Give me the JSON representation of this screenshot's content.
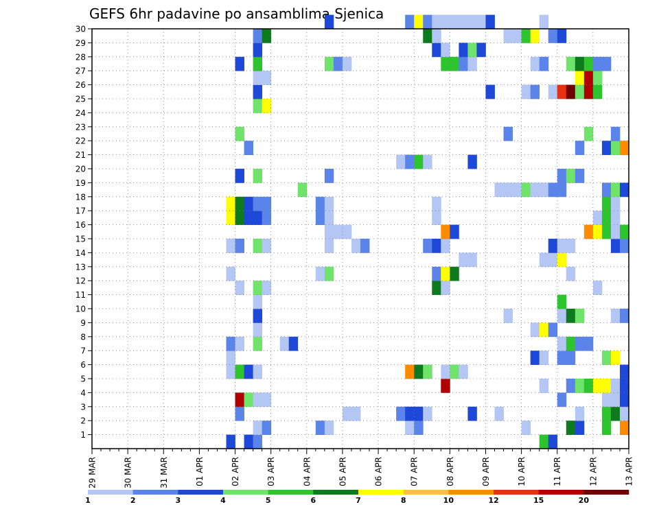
{
  "chart_data": {
    "type": "heatmap",
    "title": "GEFS 6hr padavine po ansamblima Sjenica",
    "xlabel": "",
    "ylabel": "",
    "x_tick_labels": [
      "29 MAR",
      "30 MAR",
      "31 MAR",
      "01 APR",
      "02 APR",
      "03 APR",
      "04 APR",
      "05 APR",
      "06 APR",
      "07 APR",
      "08 APR",
      "09 APR",
      "10 APR",
      "11 APR",
      "12 APR",
      "13 APR"
    ],
    "x_range_steps_6h": [
      0,
      60
    ],
    "y_tick_labels": [
      "1",
      "2",
      "3",
      "4",
      "5",
      "6",
      "7",
      "8",
      "9",
      "10",
      "11",
      "12",
      "13",
      "14",
      "15",
      "16",
      "17",
      "18",
      "19",
      "20",
      "21",
      "22",
      "23",
      "24",
      "25",
      "26",
      "27",
      "28",
      "29",
      "30"
    ],
    "y_range": [
      0,
      30
    ],
    "grid": "dotted",
    "colorbar": {
      "placement": "bottom",
      "labels": [
        "1",
        "2",
        "3",
        "4",
        "5",
        "6",
        "7",
        "8",
        "10",
        "12",
        "15",
        "20"
      ],
      "bin_edges": [
        1,
        2,
        3,
        4,
        5,
        6,
        7,
        8,
        10,
        12,
        15,
        20,
        30
      ],
      "colors": [
        "#b4c6f3",
        "#5b84ea",
        "#1d48d8",
        "#6fe36a",
        "#2ec42e",
        "#0e7a1e",
        "#ffff00",
        "#ffc040",
        "#ff8c00",
        "#e83010",
        "#b00000",
        "#700000"
      ]
    },
    "cells": [
      {
        "m": 0,
        "s": 15,
        "v": 3
      },
      {
        "m": 0,
        "s": 17,
        "v": 3
      },
      {
        "m": 0,
        "s": 18,
        "v": 2
      },
      {
        "m": 0,
        "s": 50,
        "v": 5
      },
      {
        "m": 0,
        "s": 51,
        "v": 3
      },
      {
        "m": 1,
        "s": 18,
        "v": 1
      },
      {
        "m": 1,
        "s": 19,
        "v": 2
      },
      {
        "m": 1,
        "s": 25,
        "v": 2
      },
      {
        "m": 1,
        "s": 26,
        "v": 1
      },
      {
        "m": 1,
        "s": 35,
        "v": 1
      },
      {
        "m": 1,
        "s": 36,
        "v": 2
      },
      {
        "m": 1,
        "s": 48,
        "v": 1
      },
      {
        "m": 1,
        "s": 53,
        "v": 6
      },
      {
        "m": 1,
        "s": 54,
        "v": 3
      },
      {
        "m": 1,
        "s": 57,
        "v": 5
      },
      {
        "m": 1,
        "s": 59,
        "v": 10
      },
      {
        "m": 2,
        "s": 16,
        "v": 2
      },
      {
        "m": 2,
        "s": 28,
        "v": 1
      },
      {
        "m": 2,
        "s": 29,
        "v": 1
      },
      {
        "m": 2,
        "s": 34,
        "v": 2
      },
      {
        "m": 2,
        "s": 35,
        "v": 3
      },
      {
        "m": 2,
        "s": 36,
        "v": 3
      },
      {
        "m": 2,
        "s": 37,
        "v": 1
      },
      {
        "m": 2,
        "s": 42,
        "v": 3
      },
      {
        "m": 2,
        "s": 45,
        "v": 1
      },
      {
        "m": 2,
        "s": 54,
        "v": 1
      },
      {
        "m": 2,
        "s": 57,
        "v": 5
      },
      {
        "m": 2,
        "s": 58,
        "v": 6
      },
      {
        "m": 2,
        "s": 59,
        "v": 1
      },
      {
        "m": 3,
        "s": 16,
        "v": 15
      },
      {
        "m": 3,
        "s": 17,
        "v": 4
      },
      {
        "m": 3,
        "s": 18,
        "v": 1
      },
      {
        "m": 3,
        "s": 19,
        "v": 1
      },
      {
        "m": 3,
        "s": 52,
        "v": 2
      },
      {
        "m": 3,
        "s": 57,
        "v": 1
      },
      {
        "m": 3,
        "s": 58,
        "v": 1
      },
      {
        "m": 3,
        "s": 59,
        "v": 3
      },
      {
        "m": 4,
        "s": 39,
        "v": 15
      },
      {
        "m": 4,
        "s": 50,
        "v": 1
      },
      {
        "m": 4,
        "s": 53,
        "v": 2
      },
      {
        "m": 4,
        "s": 54,
        "v": 4
      },
      {
        "m": 4,
        "s": 55,
        "v": 5
      },
      {
        "m": 4,
        "s": 56,
        "v": 7
      },
      {
        "m": 4,
        "s": 57,
        "v": 7
      },
      {
        "m": 4,
        "s": 58,
        "v": 1
      },
      {
        "m": 4,
        "s": 59,
        "v": 3
      },
      {
        "m": 5,
        "s": 15,
        "v": 1
      },
      {
        "m": 5,
        "s": 16,
        "v": 5
      },
      {
        "m": 5,
        "s": 17,
        "v": 3
      },
      {
        "m": 5,
        "s": 18,
        "v": 1
      },
      {
        "m": 5,
        "s": 35,
        "v": 10
      },
      {
        "m": 5,
        "s": 36,
        "v": 6
      },
      {
        "m": 5,
        "s": 37,
        "v": 4
      },
      {
        "m": 5,
        "s": 39,
        "v": 1
      },
      {
        "m": 5,
        "s": 40,
        "v": 4
      },
      {
        "m": 5,
        "s": 41,
        "v": 1
      },
      {
        "m": 5,
        "s": 59,
        "v": 3
      },
      {
        "m": 6,
        "s": 15,
        "v": 1
      },
      {
        "m": 6,
        "s": 49,
        "v": 3
      },
      {
        "m": 6,
        "s": 50,
        "v": 1
      },
      {
        "m": 6,
        "s": 52,
        "v": 2
      },
      {
        "m": 6,
        "s": 53,
        "v": 2
      },
      {
        "m": 6,
        "s": 57,
        "v": 4
      },
      {
        "m": 6,
        "s": 58,
        "v": 7
      },
      {
        "m": 7,
        "s": 15,
        "v": 2
      },
      {
        "m": 7,
        "s": 16,
        "v": 1
      },
      {
        "m": 7,
        "s": 18,
        "v": 4
      },
      {
        "m": 7,
        "s": 21,
        "v": 1
      },
      {
        "m": 7,
        "s": 22,
        "v": 3
      },
      {
        "m": 7,
        "s": 52,
        "v": 1
      },
      {
        "m": 7,
        "s": 53,
        "v": 5
      },
      {
        "m": 7,
        "s": 54,
        "v": 2
      },
      {
        "m": 7,
        "s": 55,
        "v": 2
      },
      {
        "m": 8,
        "s": 18,
        "v": 1
      },
      {
        "m": 8,
        "s": 49,
        "v": 1
      },
      {
        "m": 8,
        "s": 50,
        "v": 7
      },
      {
        "m": 8,
        "s": 51,
        "v": 2
      },
      {
        "m": 9,
        "s": 18,
        "v": 3
      },
      {
        "m": 9,
        "s": 46,
        "v": 1
      },
      {
        "m": 9,
        "s": 52,
        "v": 1
      },
      {
        "m": 9,
        "s": 53,
        "v": 6
      },
      {
        "m": 9,
        "s": 54,
        "v": 4
      },
      {
        "m": 9,
        "s": 58,
        "v": 1
      },
      {
        "m": 9,
        "s": 59,
        "v": 2
      },
      {
        "m": 10,
        "s": 18,
        "v": 1
      },
      {
        "m": 10,
        "s": 52,
        "v": 5
      },
      {
        "m": 11,
        "s": 16,
        "v": 1
      },
      {
        "m": 11,
        "s": 18,
        "v": 4
      },
      {
        "m": 11,
        "s": 19,
        "v": 1
      },
      {
        "m": 11,
        "s": 38,
        "v": 6
      },
      {
        "m": 11,
        "s": 39,
        "v": 1
      },
      {
        "m": 11,
        "s": 56,
        "v": 1
      },
      {
        "m": 12,
        "s": 15,
        "v": 1
      },
      {
        "m": 12,
        "s": 25,
        "v": 1
      },
      {
        "m": 12,
        "s": 26,
        "v": 4
      },
      {
        "m": 12,
        "s": 38,
        "v": 2
      },
      {
        "m": 12,
        "s": 39,
        "v": 7
      },
      {
        "m": 12,
        "s": 40,
        "v": 6
      },
      {
        "m": 12,
        "s": 53,
        "v": 1
      },
      {
        "m": 13,
        "s": 41,
        "v": 1
      },
      {
        "m": 13,
        "s": 42,
        "v": 1
      },
      {
        "m": 13,
        "s": 50,
        "v": 1
      },
      {
        "m": 13,
        "s": 51,
        "v": 1
      },
      {
        "m": 13,
        "s": 52,
        "v": 7
      },
      {
        "m": 14,
        "s": 15,
        "v": 1
      },
      {
        "m": 14,
        "s": 16,
        "v": 2
      },
      {
        "m": 14,
        "s": 18,
        "v": 4
      },
      {
        "m": 14,
        "s": 19,
        "v": 1
      },
      {
        "m": 14,
        "s": 26,
        "v": 1
      },
      {
        "m": 14,
        "s": 29,
        "v": 1
      },
      {
        "m": 14,
        "s": 30,
        "v": 2
      },
      {
        "m": 14,
        "s": 37,
        "v": 2
      },
      {
        "m": 14,
        "s": 38,
        "v": 3
      },
      {
        "m": 14,
        "s": 39,
        "v": 1
      },
      {
        "m": 14,
        "s": 51,
        "v": 3
      },
      {
        "m": 14,
        "s": 52,
        "v": 1
      },
      {
        "m": 14,
        "s": 53,
        "v": 1
      },
      {
        "m": 14,
        "s": 58,
        "v": 3
      },
      {
        "m": 14,
        "s": 59,
        "v": 2
      },
      {
        "m": 15,
        "s": 26,
        "v": 1
      },
      {
        "m": 15,
        "s": 27,
        "v": 1
      },
      {
        "m": 15,
        "s": 28,
        "v": 1
      },
      {
        "m": 15,
        "s": 39,
        "v": 10
      },
      {
        "m": 15,
        "s": 40,
        "v": 3
      },
      {
        "m": 15,
        "s": 55,
        "v": 10
      },
      {
        "m": 15,
        "s": 56,
        "v": 7
      },
      {
        "m": 15,
        "s": 57,
        "v": 5
      },
      {
        "m": 15,
        "s": 58,
        "v": 1
      },
      {
        "m": 15,
        "s": 59,
        "v": 5
      },
      {
        "m": 16,
        "s": 15,
        "v": 7
      },
      {
        "m": 16,
        "s": 16,
        "v": 6
      },
      {
        "m": 16,
        "s": 17,
        "v": 3
      },
      {
        "m": 16,
        "s": 18,
        "v": 3
      },
      {
        "m": 16,
        "s": 19,
        "v": 2
      },
      {
        "m": 16,
        "s": 25,
        "v": 2
      },
      {
        "m": 16,
        "s": 26,
        "v": 1
      },
      {
        "m": 16,
        "s": 38,
        "v": 1
      },
      {
        "m": 16,
        "s": 56,
        "v": 1
      },
      {
        "m": 16,
        "s": 57,
        "v": 5
      },
      {
        "m": 16,
        "s": 58,
        "v": 1
      },
      {
        "m": 17,
        "s": 15,
        "v": 7
      },
      {
        "m": 17,
        "s": 16,
        "v": 6
      },
      {
        "m": 17,
        "s": 17,
        "v": 3
      },
      {
        "m": 17,
        "s": 18,
        "v": 2
      },
      {
        "m": 17,
        "s": 19,
        "v": 2
      },
      {
        "m": 17,
        "s": 25,
        "v": 2
      },
      {
        "m": 17,
        "s": 26,
        "v": 1
      },
      {
        "m": 17,
        "s": 38,
        "v": 1
      },
      {
        "m": 17,
        "s": 57,
        "v": 5
      },
      {
        "m": 17,
        "s": 58,
        "v": 1
      },
      {
        "m": 18,
        "s": 23,
        "v": 4
      },
      {
        "m": 18,
        "s": 45,
        "v": 1
      },
      {
        "m": 18,
        "s": 46,
        "v": 1
      },
      {
        "m": 18,
        "s": 47,
        "v": 1
      },
      {
        "m": 18,
        "s": 48,
        "v": 4
      },
      {
        "m": 18,
        "s": 49,
        "v": 1
      },
      {
        "m": 18,
        "s": 50,
        "v": 1
      },
      {
        "m": 18,
        "s": 51,
        "v": 2
      },
      {
        "m": 18,
        "s": 52,
        "v": 2
      },
      {
        "m": 18,
        "s": 57,
        "v": 2
      },
      {
        "m": 18,
        "s": 58,
        "v": 4
      },
      {
        "m": 18,
        "s": 59,
        "v": 3
      },
      {
        "m": 19,
        "s": 16,
        "v": 3
      },
      {
        "m": 19,
        "s": 18,
        "v": 4
      },
      {
        "m": 19,
        "s": 26,
        "v": 2
      },
      {
        "m": 19,
        "s": 52,
        "v": 2
      },
      {
        "m": 19,
        "s": 53,
        "v": 4
      },
      {
        "m": 19,
        "s": 54,
        "v": 2
      },
      {
        "m": 20,
        "s": 34,
        "v": 1
      },
      {
        "m": 20,
        "s": 35,
        "v": 2
      },
      {
        "m": 20,
        "s": 36,
        "v": 5
      },
      {
        "m": 20,
        "s": 37,
        "v": 1
      },
      {
        "m": 20,
        "s": 42,
        "v": 3
      },
      {
        "m": 21,
        "s": 17,
        "v": 2
      },
      {
        "m": 21,
        "s": 54,
        "v": 2
      },
      {
        "m": 21,
        "s": 57,
        "v": 3
      },
      {
        "m": 21,
        "s": 58,
        "v": 4
      },
      {
        "m": 21,
        "s": 59,
        "v": 10
      },
      {
        "m": 22,
        "s": 16,
        "v": 4
      },
      {
        "m": 22,
        "s": 46,
        "v": 2
      },
      {
        "m": 22,
        "s": 55,
        "v": 4
      },
      {
        "m": 22,
        "s": 58,
        "v": 2
      },
      {
        "m": 24,
        "s": 18,
        "v": 4
      },
      {
        "m": 24,
        "s": 19,
        "v": 7
      },
      {
        "m": 25,
        "s": 18,
        "v": 3
      },
      {
        "m": 25,
        "s": 44,
        "v": 3
      },
      {
        "m": 25,
        "s": 48,
        "v": 1
      },
      {
        "m": 25,
        "s": 49,
        "v": 2
      },
      {
        "m": 25,
        "s": 51,
        "v": 1
      },
      {
        "m": 25,
        "s": 52,
        "v": 12
      },
      {
        "m": 25,
        "s": 53,
        "v": 20
      },
      {
        "m": 25,
        "s": 54,
        "v": 4
      },
      {
        "m": 25,
        "s": 55,
        "v": 15
      },
      {
        "m": 25,
        "s": 56,
        "v": 5
      },
      {
        "m": 26,
        "s": 18,
        "v": 1
      },
      {
        "m": 26,
        "s": 19,
        "v": 1
      },
      {
        "m": 26,
        "s": 54,
        "v": 7
      },
      {
        "m": 26,
        "s": 55,
        "v": 15
      },
      {
        "m": 26,
        "s": 56,
        "v": 4
      },
      {
        "m": 27,
        "s": 16,
        "v": 3
      },
      {
        "m": 27,
        "s": 18,
        "v": 5
      },
      {
        "m": 27,
        "s": 26,
        "v": 4
      },
      {
        "m": 27,
        "s": 27,
        "v": 2
      },
      {
        "m": 27,
        "s": 28,
        "v": 1
      },
      {
        "m": 27,
        "s": 39,
        "v": 5
      },
      {
        "m": 27,
        "s": 40,
        "v": 5
      },
      {
        "m": 27,
        "s": 41,
        "v": 2
      },
      {
        "m": 27,
        "s": 42,
        "v": 1
      },
      {
        "m": 27,
        "s": 49,
        "v": 1
      },
      {
        "m": 27,
        "s": 50,
        "v": 2
      },
      {
        "m": 27,
        "s": 53,
        "v": 4
      },
      {
        "m": 27,
        "s": 54,
        "v": 6
      },
      {
        "m": 27,
        "s": 55,
        "v": 5
      },
      {
        "m": 27,
        "s": 56,
        "v": 2
      },
      {
        "m": 27,
        "s": 57,
        "v": 2
      },
      {
        "m": 28,
        "s": 18,
        "v": 3
      },
      {
        "m": 28,
        "s": 38,
        "v": 3
      },
      {
        "m": 28,
        "s": 39,
        "v": 1
      },
      {
        "m": 28,
        "s": 41,
        "v": 3
      },
      {
        "m": 28,
        "s": 42,
        "v": 4
      },
      {
        "m": 28,
        "s": 43,
        "v": 3
      },
      {
        "m": 29,
        "s": 18,
        "v": 2
      },
      {
        "m": 29,
        "s": 19,
        "v": 6
      },
      {
        "m": 29,
        "s": 37,
        "v": 6
      },
      {
        "m": 29,
        "s": 38,
        "v": 1
      },
      {
        "m": 29,
        "s": 46,
        "v": 1
      },
      {
        "m": 29,
        "s": 47,
        "v": 1
      },
      {
        "m": 29,
        "s": 48,
        "v": 5
      },
      {
        "m": 29,
        "s": 49,
        "v": 7
      },
      {
        "m": 29,
        "s": 51,
        "v": 2
      },
      {
        "m": 29,
        "s": 52,
        "v": 3
      },
      {
        "m": 30,
        "s": 26,
        "v": 3
      },
      {
        "m": 30,
        "s": 35,
        "v": 2
      },
      {
        "m": 30,
        "s": 36,
        "v": 7
      },
      {
        "m": 30,
        "s": 37,
        "v": 2
      },
      {
        "m": 30,
        "s": 38,
        "v": 1
      },
      {
        "m": 30,
        "s": 39,
        "v": 1
      },
      {
        "m": 30,
        "s": 40,
        "v": 1
      },
      {
        "m": 30,
        "s": 41,
        "v": 1
      },
      {
        "m": 30,
        "s": 42,
        "v": 1
      },
      {
        "m": 30,
        "s": 43,
        "v": 1
      },
      {
        "m": 30,
        "s": 44,
        "v": 3
      },
      {
        "m": 30,
        "s": 50,
        "v": 1
      }
    ]
  }
}
